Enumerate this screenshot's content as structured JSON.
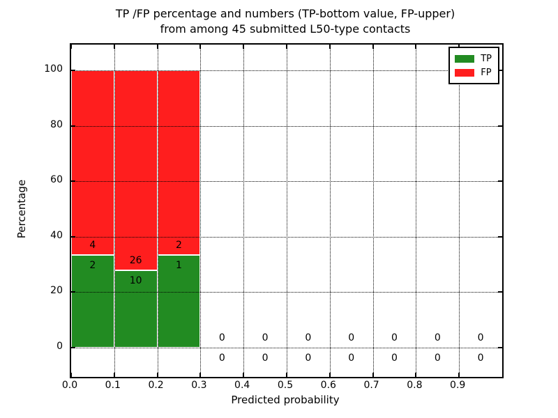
{
  "chart_data": {
    "type": "bar",
    "stacked": true,
    "normalized": "percent-per-bin",
    "title": "TP /FP percentage and numbers (TP-bottom value, FP-upper)\nfrom among 45 submitted L50-type contacts",
    "title_lines": [
      "TP /FP percentage and numbers (TP-bottom value, FP-upper)",
      "from among 45 submitted L50-type contacts"
    ],
    "xlabel": "Predicted probability",
    "ylabel": "Percentage",
    "xlim": [
      0.0,
      1.0
    ],
    "ylim": [
      -10.6,
      109.3
    ],
    "xticks": [
      0.0,
      0.1,
      0.2,
      0.3,
      0.4,
      0.5,
      0.6,
      0.7,
      0.8,
      0.9
    ],
    "xtick_labels": [
      "0.0",
      "0.1",
      "0.2",
      "0.3",
      "0.4",
      "0.5",
      "0.6",
      "0.7",
      "0.8",
      "0.9"
    ],
    "yticks": [
      0,
      20,
      40,
      60,
      80,
      100
    ],
    "ytick_labels": [
      "0",
      "20",
      "40",
      "60",
      "80",
      "100"
    ],
    "grid": true,
    "grid_style": "dotted",
    "bin_width": 0.1,
    "total_contacts": 45,
    "colors": {
      "tp": "#228b22",
      "fp": "#ff1e1e"
    },
    "legend": {
      "position": "upper right",
      "entries": [
        {
          "label": "TP",
          "color": "#228b22"
        },
        {
          "label": "FP",
          "color": "#ff1e1e"
        }
      ]
    },
    "bins": [
      {
        "x_start": 0.0,
        "tp": 2,
        "fp": 4,
        "tp_pct": 33.33,
        "fp_pct": 66.67
      },
      {
        "x_start": 0.1,
        "tp": 10,
        "fp": 26,
        "tp_pct": 27.78,
        "fp_pct": 72.22
      },
      {
        "x_start": 0.2,
        "tp": 1,
        "fp": 2,
        "tp_pct": 33.33,
        "fp_pct": 66.67
      },
      {
        "x_start": 0.3,
        "tp": 0,
        "fp": 0,
        "tp_pct": 0,
        "fp_pct": 0
      },
      {
        "x_start": 0.4,
        "tp": 0,
        "fp": 0,
        "tp_pct": 0,
        "fp_pct": 0
      },
      {
        "x_start": 0.5,
        "tp": 0,
        "fp": 0,
        "tp_pct": 0,
        "fp_pct": 0
      },
      {
        "x_start": 0.6,
        "tp": 0,
        "fp": 0,
        "tp_pct": 0,
        "fp_pct": 0
      },
      {
        "x_start": 0.7,
        "tp": 0,
        "fp": 0,
        "tp_pct": 0,
        "fp_pct": 0
      },
      {
        "x_start": 0.8,
        "tp": 0,
        "fp": 0,
        "tp_pct": 0,
        "fp_pct": 0
      },
      {
        "x_start": 0.9,
        "tp": 0,
        "fp": 0,
        "tp_pct": 0,
        "fp_pct": 0
      }
    ]
  }
}
